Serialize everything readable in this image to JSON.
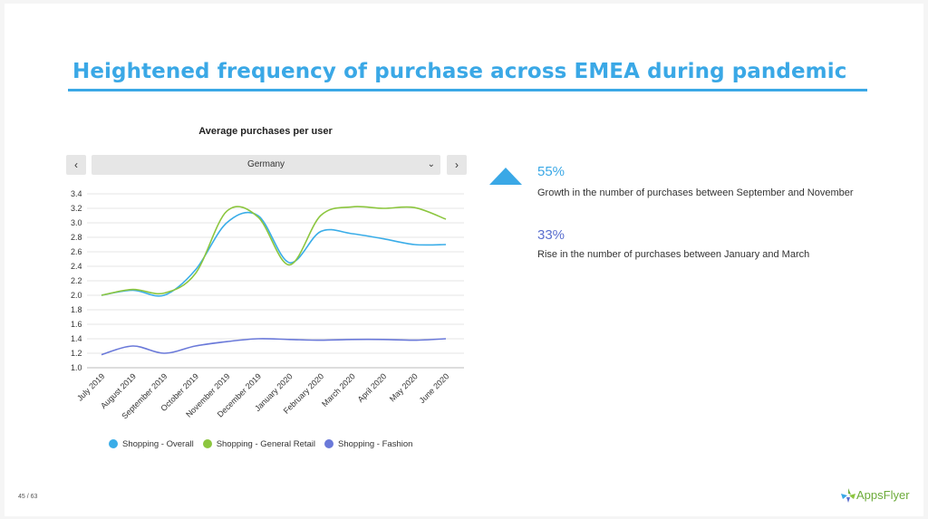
{
  "slide": {
    "title": "Heightened frequency of purchase across EMEA during pandemic",
    "page_indicator": "45 / 63",
    "brand": "AppsFlyer",
    "accent_color": "#3aa8e6"
  },
  "controls": {
    "prev_label": "‹",
    "next_label": "›",
    "selected_country": "Germany",
    "dropdown_caret": "⌄"
  },
  "stats": [
    {
      "value": "55%",
      "text": "Growth in the number of purchases between September and November",
      "icon": "triangle-up-icon"
    },
    {
      "value": "33%",
      "text": "Rise in the number of purchases between January and March"
    }
  ],
  "chart_data": {
    "type": "line",
    "title": "Average purchases per user",
    "categories": [
      "July 2019",
      "August 2019",
      "September 2019",
      "October 2019",
      "November 2019",
      "December 2019",
      "January 2020",
      "February 2020",
      "March 2020",
      "April 2020",
      "May 2020",
      "June 2020"
    ],
    "series": [
      {
        "name": "Shopping - Overall",
        "color": "#3aade8",
        "values": [
          2.0,
          2.07,
          2.0,
          2.35,
          3.0,
          3.1,
          2.45,
          2.88,
          2.85,
          2.78,
          2.7,
          2.7
        ]
      },
      {
        "name": "Shopping - General Retail",
        "color": "#8cc63f",
        "values": [
          2.0,
          2.08,
          2.03,
          2.3,
          3.16,
          3.08,
          2.42,
          3.1,
          3.22,
          3.2,
          3.21,
          3.05
        ]
      },
      {
        "name": "Shopping - Fashion",
        "color": "#6a79d9",
        "values": [
          1.18,
          1.3,
          1.2,
          1.3,
          1.36,
          1.4,
          1.39,
          1.38,
          1.39,
          1.39,
          1.38,
          1.4
        ]
      }
    ],
    "yticks": [
      1.0,
      1.2,
      1.4,
      1.6,
      1.8,
      2.0,
      2.2,
      2.4,
      2.6,
      2.8,
      3.0,
      3.2,
      3.4
    ],
    "ylim": [
      1.0,
      3.4
    ],
    "grid": true,
    "legend": "bottom"
  }
}
